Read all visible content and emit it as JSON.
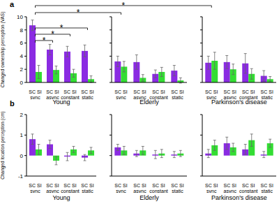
{
  "chart_data": [
    {
      "type": "bar",
      "panel_label": "a",
      "title": "Young",
      "ylabel": "Changed ownership perception (VAS)",
      "categories": [
        "sync",
        "async",
        "constant",
        "static"
      ],
      "series": [
        {
          "name": "SC",
          "color": "#8a2be2",
          "values": [
            8.7,
            5.0,
            4.7,
            4.8
          ],
          "errors": [
            0.8,
            0.8,
            0.8,
            0.9
          ]
        },
        {
          "name": "SI",
          "color": "#33dd33",
          "values": [
            1.6,
            1.9,
            1.4,
            0.5
          ],
          "errors": [
            1.0,
            0.6,
            0.6,
            0.5
          ]
        }
      ],
      "ylim": [
        0,
        10
      ],
      "yticks": [
        0,
        2,
        4,
        6,
        8,
        10
      ],
      "annotations": [
        {
          "label": "*",
          "from": {
            "chart": 0,
            "category": 0
          },
          "to": {
            "chart": 0,
            "category": 1
          }
        },
        {
          "label": "*",
          "from": {
            "chart": 0,
            "category": 0
          },
          "to": {
            "chart": 0,
            "category": 2
          }
        },
        {
          "label": "*",
          "from": {
            "chart": 0,
            "category": 0
          },
          "to": {
            "chart": 0,
            "category": 3
          }
        },
        {
          "label": "*",
          "from": {
            "chart": 0,
            "category": 0
          },
          "to": {
            "chart": 1,
            "category": 0
          }
        },
        {
          "label": "*",
          "from": {
            "chart": 0,
            "category": 0
          },
          "to": {
            "chart": 2,
            "category": 0
          }
        }
      ]
    },
    {
      "type": "bar",
      "title": "Elderly",
      "categories": [
        "sync",
        "async",
        "constant",
        "static"
      ],
      "series": [
        {
          "name": "SC",
          "color": "#8a2be2",
          "values": [
            3.2,
            3.1,
            1.3,
            1.8
          ],
          "errors": [
            0.8,
            1.1,
            0.6,
            0.8
          ]
        },
        {
          "name": "SI",
          "color": "#33dd33",
          "values": [
            2.4,
            0.7,
            1.6,
            0.3
          ],
          "errors": [
            0.8,
            0.5,
            0.7,
            0.4
          ]
        }
      ],
      "ylim": [
        0,
        10
      ],
      "yticks": [
        0,
        2,
        4,
        6,
        8,
        10
      ],
      "tick_labels": "x"
    },
    {
      "type": "bar",
      "title": "Parkinson's disease",
      "categories": [
        "sync",
        "async",
        "constant",
        "static"
      ],
      "series": [
        {
          "name": "SC",
          "color": "#8a2be2",
          "values": [
            3.0,
            3.1,
            2.9,
            1.0
          ],
          "errors": [
            1.0,
            1.0,
            1.5,
            0.8
          ]
        },
        {
          "name": "SI",
          "color": "#33dd33",
          "values": [
            3.3,
            2.0,
            1.3,
            0.5
          ],
          "errors": [
            1.3,
            0.8,
            0.8,
            0.4
          ]
        }
      ],
      "ylim": [
        0,
        10
      ],
      "yticks": [
        0,
        2,
        4,
        6,
        8,
        10
      ],
      "tick_labels": "x"
    },
    {
      "type": "bar",
      "panel_label": "b",
      "title": "Young",
      "ylabel": "Changed location perception (cm)",
      "categories": [
        "sync",
        "async",
        "constant",
        "static"
      ],
      "series": [
        {
          "name": "SC",
          "color": "#8a2be2",
          "values": [
            0.8,
            0.55,
            -0.05,
            -0.1
          ],
          "errors": [
            0.25,
            0.2,
            0.2,
            0.15
          ]
        },
        {
          "name": "SI",
          "color": "#33dd33",
          "values": [
            0.3,
            -0.25,
            0.3,
            0.25
          ],
          "errors": [
            0.25,
            0.2,
            0.15,
            0.15
          ]
        }
      ],
      "ylim": [
        -1,
        2
      ],
      "yticks": [
        -1,
        0,
        1,
        2
      ]
    },
    {
      "type": "bar",
      "title": "Elderly",
      "categories": [
        "sync",
        "async",
        "constant",
        "static"
      ],
      "series": [
        {
          "name": "SC",
          "color": "#8a2be2",
          "values": [
            0.4,
            0.1,
            0.05,
            0.05
          ],
          "errors": [
            0.15,
            0.15,
            0.2,
            0.15
          ]
        },
        {
          "name": "SI",
          "color": "#33dd33",
          "values": [
            0.25,
            0.25,
            0.1,
            0.1
          ],
          "errors": [
            0.2,
            0.2,
            0.2,
            0.15
          ]
        }
      ],
      "ylim": [
        -1,
        2
      ],
      "yticks": [
        -1,
        0,
        1,
        2
      ],
      "tick_labels": "x"
    },
    {
      "type": "bar",
      "title": "Parkinson's disease",
      "categories": [
        "sync",
        "async",
        "constant",
        "static"
      ],
      "series": [
        {
          "name": "SC",
          "color": "#8a2be2",
          "values": [
            0.1,
            0.6,
            0.3,
            0.05
          ],
          "errors": [
            0.2,
            0.3,
            0.25,
            0.15
          ]
        },
        {
          "name": "SI",
          "color": "#33dd33",
          "values": [
            0.5,
            0.4,
            0.75,
            0.6
          ],
          "errors": [
            0.25,
            0.2,
            0.3,
            0.2
          ]
        }
      ],
      "ylim": [
        -1,
        2
      ],
      "yticks": [
        -1,
        0,
        1,
        2
      ],
      "tick_labels": "x"
    }
  ]
}
